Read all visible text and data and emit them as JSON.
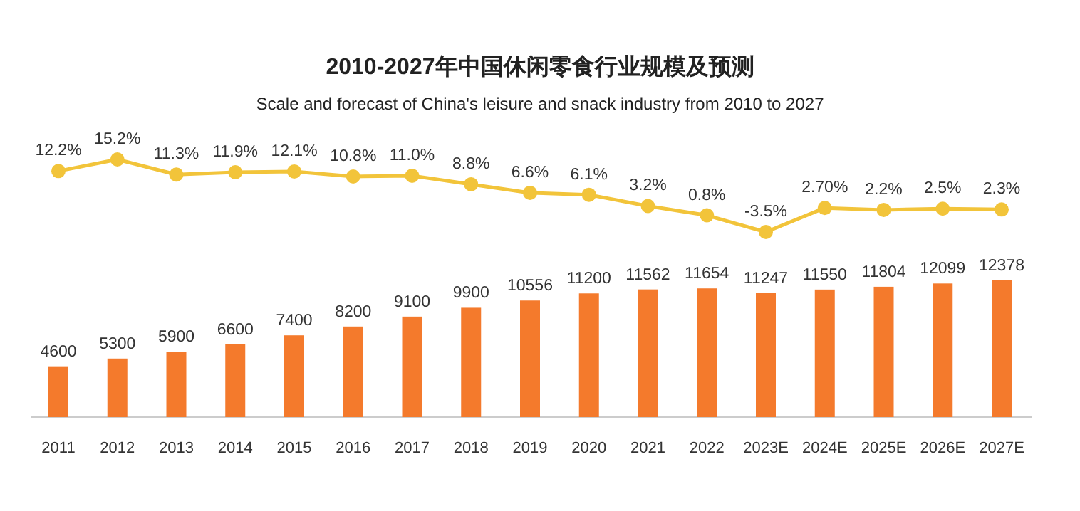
{
  "chart_data": [
    {
      "type": "line",
      "title": "2010-2027年中国休闲零食行业规模及预测",
      "subtitle": "Scale and forecast of China's leisure and snack industry from 2010 to 2027",
      "categories": [
        null,
        null,
        null,
        null,
        null,
        null,
        null,
        null,
        null,
        null,
        null,
        null,
        null,
        null,
        null,
        null,
        null
      ],
      "marker": "circle",
      "series": [
        {
          "color": "#f2c43a",
          "values": [
            12.2,
            15.2,
            11.3,
            11.9,
            12.1,
            10.8,
            11.0,
            8.8,
            6.6,
            6.1,
            3.2,
            0.8,
            -3.5,
            2.7,
            2.2,
            2.5,
            2.3
          ],
          "value_labels": [
            "12.2%",
            "15.2%",
            "11.3%",
            "11.9%",
            "12.1%",
            "10.8%",
            "11.0%",
            "8.8%",
            "6.6%",
            "6.1%",
            "3.2%",
            "0.8%",
            "-3.5%",
            "2.70%",
            "2.2%",
            "2.5%",
            "2.3%"
          ]
        }
      ]
    },
    {
      "type": "bar",
      "categories": [
        "2011",
        "2012",
        "2013",
        "2014",
        "2015",
        "2016",
        "2017",
        "2018",
        "2019",
        "2020",
        "2021",
        "2022",
        "2023E",
        "2024E",
        "2025E",
        "2026E",
        "2027E"
      ],
      "data_labels": true,
      "tick_labels": "x",
      "series": [
        {
          "color": "#f47a2c",
          "values": [
            4600,
            5300,
            5900,
            6600,
            7400,
            8200,
            9100,
            9900,
            10556,
            11200,
            11562,
            11654,
            11247,
            11550,
            11804,
            12099,
            12378
          ]
        }
      ]
    }
  ]
}
